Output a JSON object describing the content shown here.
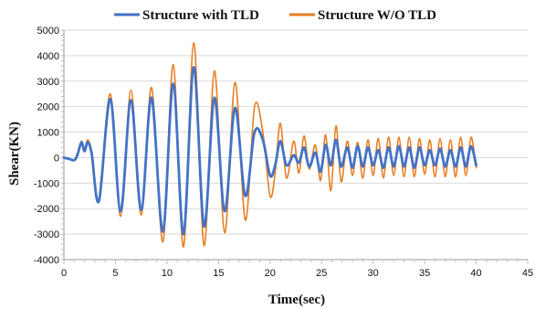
{
  "chart_data": {
    "type": "line",
    "xlabel": "Time(sec)",
    "ylabel": "Shear(KN)",
    "xlim": [
      0,
      45
    ],
    "ylim": [
      -4000,
      5000
    ],
    "xticks": [
      0,
      5,
      10,
      15,
      20,
      25,
      30,
      35,
      40,
      45
    ],
    "yticks": [
      5000,
      4000,
      3000,
      2000,
      1000,
      0,
      -1000,
      -2000,
      -3000,
      -4000
    ],
    "grid": "horizontal",
    "legend_position": "top",
    "series": [
      {
        "name": "Structure with TLD",
        "color": "#4472C4",
        "line_width": 2.8,
        "x": [
          0,
          0.5,
          1.0,
          1.3,
          1.7,
          2.0,
          2.3,
          2.7,
          3.4,
          4.5,
          5.5,
          6.5,
          7.5,
          8.5,
          9.6,
          10.6,
          11.6,
          12.6,
          13.6,
          14.6,
          15.6,
          16.6,
          17.6,
          18.5,
          19.3,
          20.0,
          20.5,
          21.0,
          21.6,
          22.3,
          22.8,
          23.3,
          23.8,
          24.4,
          24.9,
          25.4,
          25.9,
          26.4,
          26.9,
          27.5,
          28.0,
          28.5,
          29.0,
          29.5,
          30.0,
          30.5,
          31.0,
          31.5,
          32.0,
          32.5,
          33.0,
          33.5,
          34.0,
          34.5,
          35.0,
          35.5,
          36.0,
          36.5,
          37.0,
          37.5,
          38.0,
          38.5,
          39.0,
          39.5,
          40.0
        ],
        "y": [
          0,
          -50,
          -100,
          100,
          600,
          250,
          600,
          150,
          -1700,
          2300,
          -2100,
          2250,
          -2050,
          2350,
          -2900,
          2900,
          -3000,
          3550,
          -2700,
          2350,
          -2100,
          1950,
          -1500,
          1000,
          700,
          -700,
          -300,
          650,
          -300,
          100,
          -200,
          400,
          -350,
          200,
          -550,
          500,
          -300,
          700,
          -350,
          400,
          -400,
          450,
          -350,
          400,
          -300,
          300,
          -400,
          400,
          -350,
          450,
          -350,
          400,
          -400,
          400,
          -300,
          300,
          -300,
          350,
          -350,
          300,
          -350,
          400,
          -350,
          450,
          -300
        ]
      },
      {
        "name": "Structure W/O TLD",
        "color": "#E67E22",
        "line_width": 1.6,
        "x": [
          0,
          0.5,
          1.0,
          1.3,
          1.7,
          2.0,
          2.3,
          2.7,
          3.4,
          4.5,
          5.5,
          6.5,
          7.5,
          8.5,
          9.6,
          10.6,
          11.6,
          12.6,
          13.6,
          14.6,
          15.6,
          16.6,
          17.6,
          18.5,
          19.3,
          20.0,
          20.5,
          21.0,
          21.6,
          22.3,
          22.8,
          23.3,
          23.8,
          24.4,
          24.9,
          25.4,
          25.9,
          26.4,
          26.9,
          27.5,
          28.0,
          28.5,
          29.0,
          29.5,
          30.0,
          30.5,
          31.0,
          31.5,
          32.0,
          32.5,
          33.0,
          33.5,
          34.0,
          34.5,
          35.0,
          35.5,
          36.0,
          36.5,
          37.0,
          37.5,
          38.0,
          38.5,
          39.0,
          39.5,
          40.0
        ],
        "y": [
          0,
          -50,
          -100,
          100,
          650,
          250,
          700,
          200,
          -1700,
          2500,
          -2300,
          2650,
          -2250,
          2750,
          -3300,
          3650,
          -3500,
          4500,
          -3450,
          3400,
          -2950,
          2950,
          -2450,
          2000,
          1000,
          -1500,
          -600,
          1350,
          -800,
          650,
          -600,
          850,
          -450,
          500,
          -900,
          900,
          -1300,
          1250,
          -950,
          650,
          -700,
          600,
          -800,
          700,
          -700,
          750,
          -800,
          800,
          -700,
          800,
          -750,
          800,
          -750,
          750,
          -650,
          700,
          -750,
          750,
          -750,
          700,
          -750,
          800,
          -700,
          800,
          -400
        ]
      }
    ]
  }
}
